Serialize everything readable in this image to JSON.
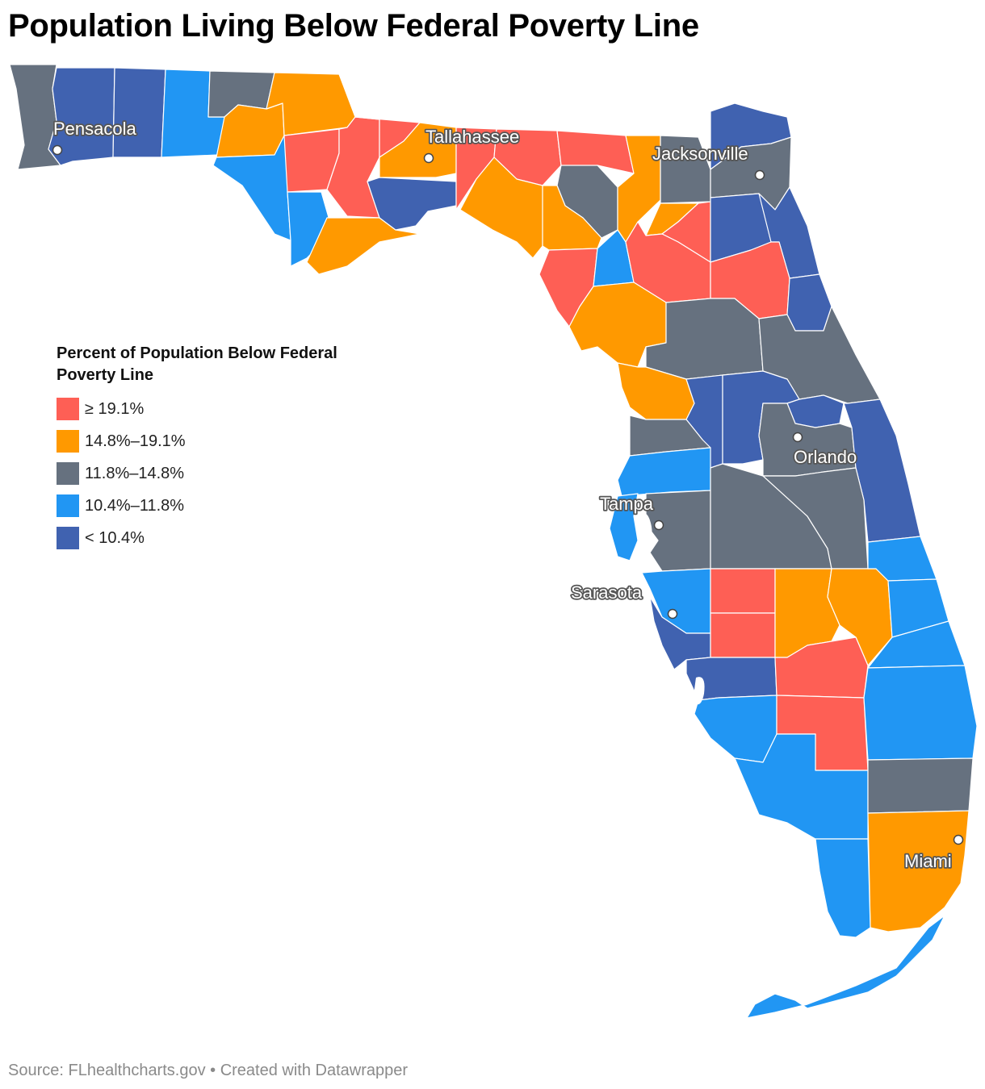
{
  "title": "Population Living Below Federal Poverty Line",
  "legend": {
    "title_line1": "Percent of Population Below Federal",
    "title_line2": "Poverty Line",
    "items": [
      {
        "label": "≥ 19.1%",
        "color": "#fe5f55"
      },
      {
        "label": "14.8%–19.1%",
        "color": "#ff9900"
      },
      {
        "label": "11.8%–14.8%",
        "color": "#66717f"
      },
      {
        "label": "10.4%–11.8%",
        "color": "#2196f3"
      },
      {
        "label": "< 10.4%",
        "color": "#4062b0"
      }
    ]
  },
  "cities": [
    {
      "name": "Pensacola"
    },
    {
      "name": "Tallahassee"
    },
    {
      "name": "Jacksonville"
    },
    {
      "name": "Orlando"
    },
    {
      "name": "Tampa"
    },
    {
      "name": "Sarasota"
    },
    {
      "name": "Miami"
    }
  ],
  "source": "Source: FLhealthcharts.gov • Created with Datawrapper"
}
